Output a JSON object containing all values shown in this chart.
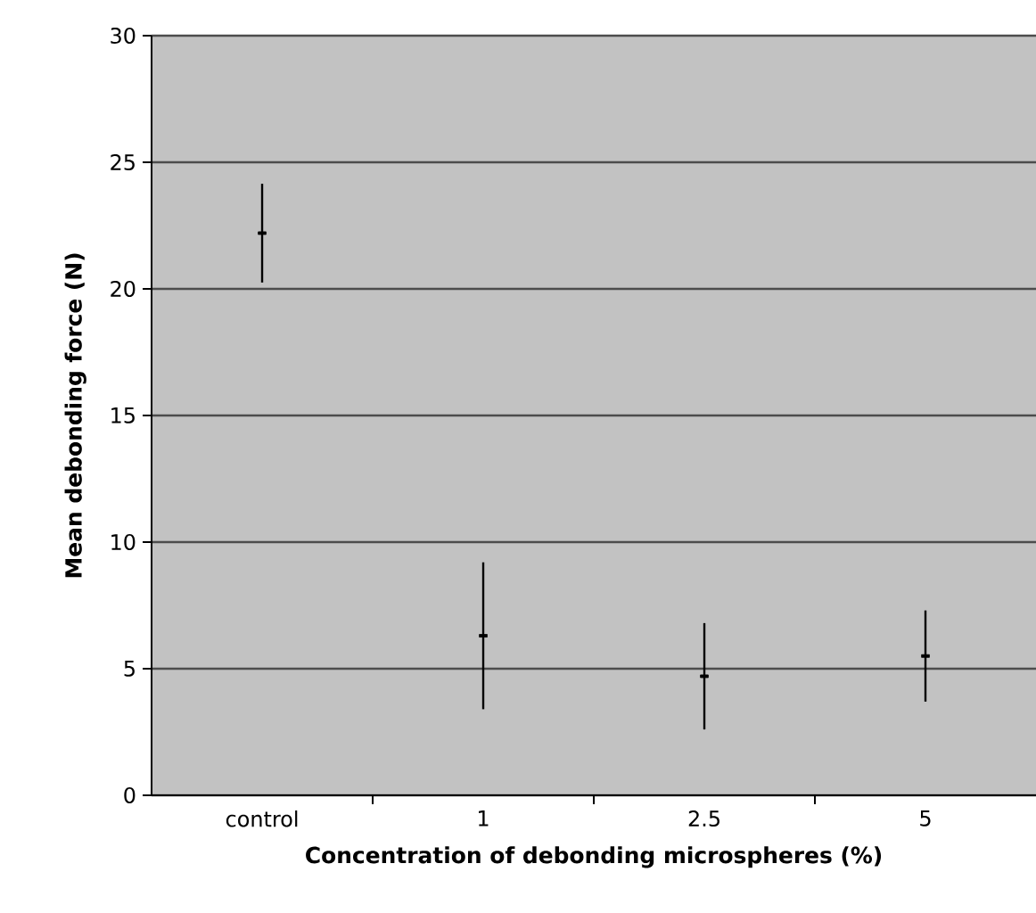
{
  "chart_data": {
    "type": "scatter",
    "xlabel": "Concentration of debonding microspheres (%)",
    "ylabel": "Mean debonding force (N)",
    "categories": [
      "control",
      "1",
      "2.5",
      "5"
    ],
    "values": [
      22.2,
      6.3,
      4.7,
      5.5
    ],
    "errors": [
      1.95,
      2.9,
      2.1,
      1.8
    ],
    "color": "#000000",
    "ylim": [
      0,
      30
    ],
    "yticks": [
      0,
      5,
      10,
      15,
      20,
      25,
      30
    ],
    "grid": "y"
  }
}
